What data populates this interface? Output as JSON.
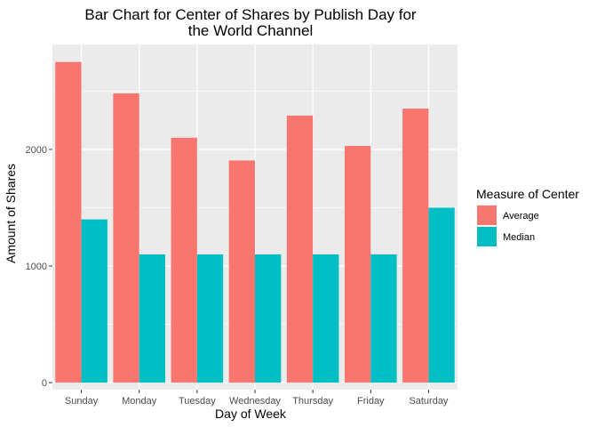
{
  "chart_data": {
    "type": "bar",
    "title_lines": [
      "Bar Chart for Center of Shares by Publish Day for",
      "the World Channel"
    ],
    "xlabel": "Day of Week",
    "ylabel": "Amount of Shares",
    "categories": [
      "Sunday",
      "Monday",
      "Tuesday",
      "Wednesday",
      "Thursday",
      "Friday",
      "Saturday"
    ],
    "series": [
      {
        "name": "Average",
        "color": "#F8766D",
        "values": [
          2750,
          2480,
          2100,
          1905,
          2290,
          2030,
          2350
        ]
      },
      {
        "name": "Median",
        "color": "#00BFC4",
        "values": [
          1400,
          1100,
          1100,
          1100,
          1100,
          1100,
          1500
        ]
      }
    ],
    "ylim": [
      -60,
      2900
    ],
    "yticks": [
      0,
      1000,
      2000
    ],
    "ytick_labels": [
      "0",
      "1000",
      "2000"
    ],
    "legend_title": "Measure of Center",
    "legend_position": "right",
    "grid": true,
    "panel_background": "#EBEBEB",
    "grid_color": "#FFFFFF"
  }
}
